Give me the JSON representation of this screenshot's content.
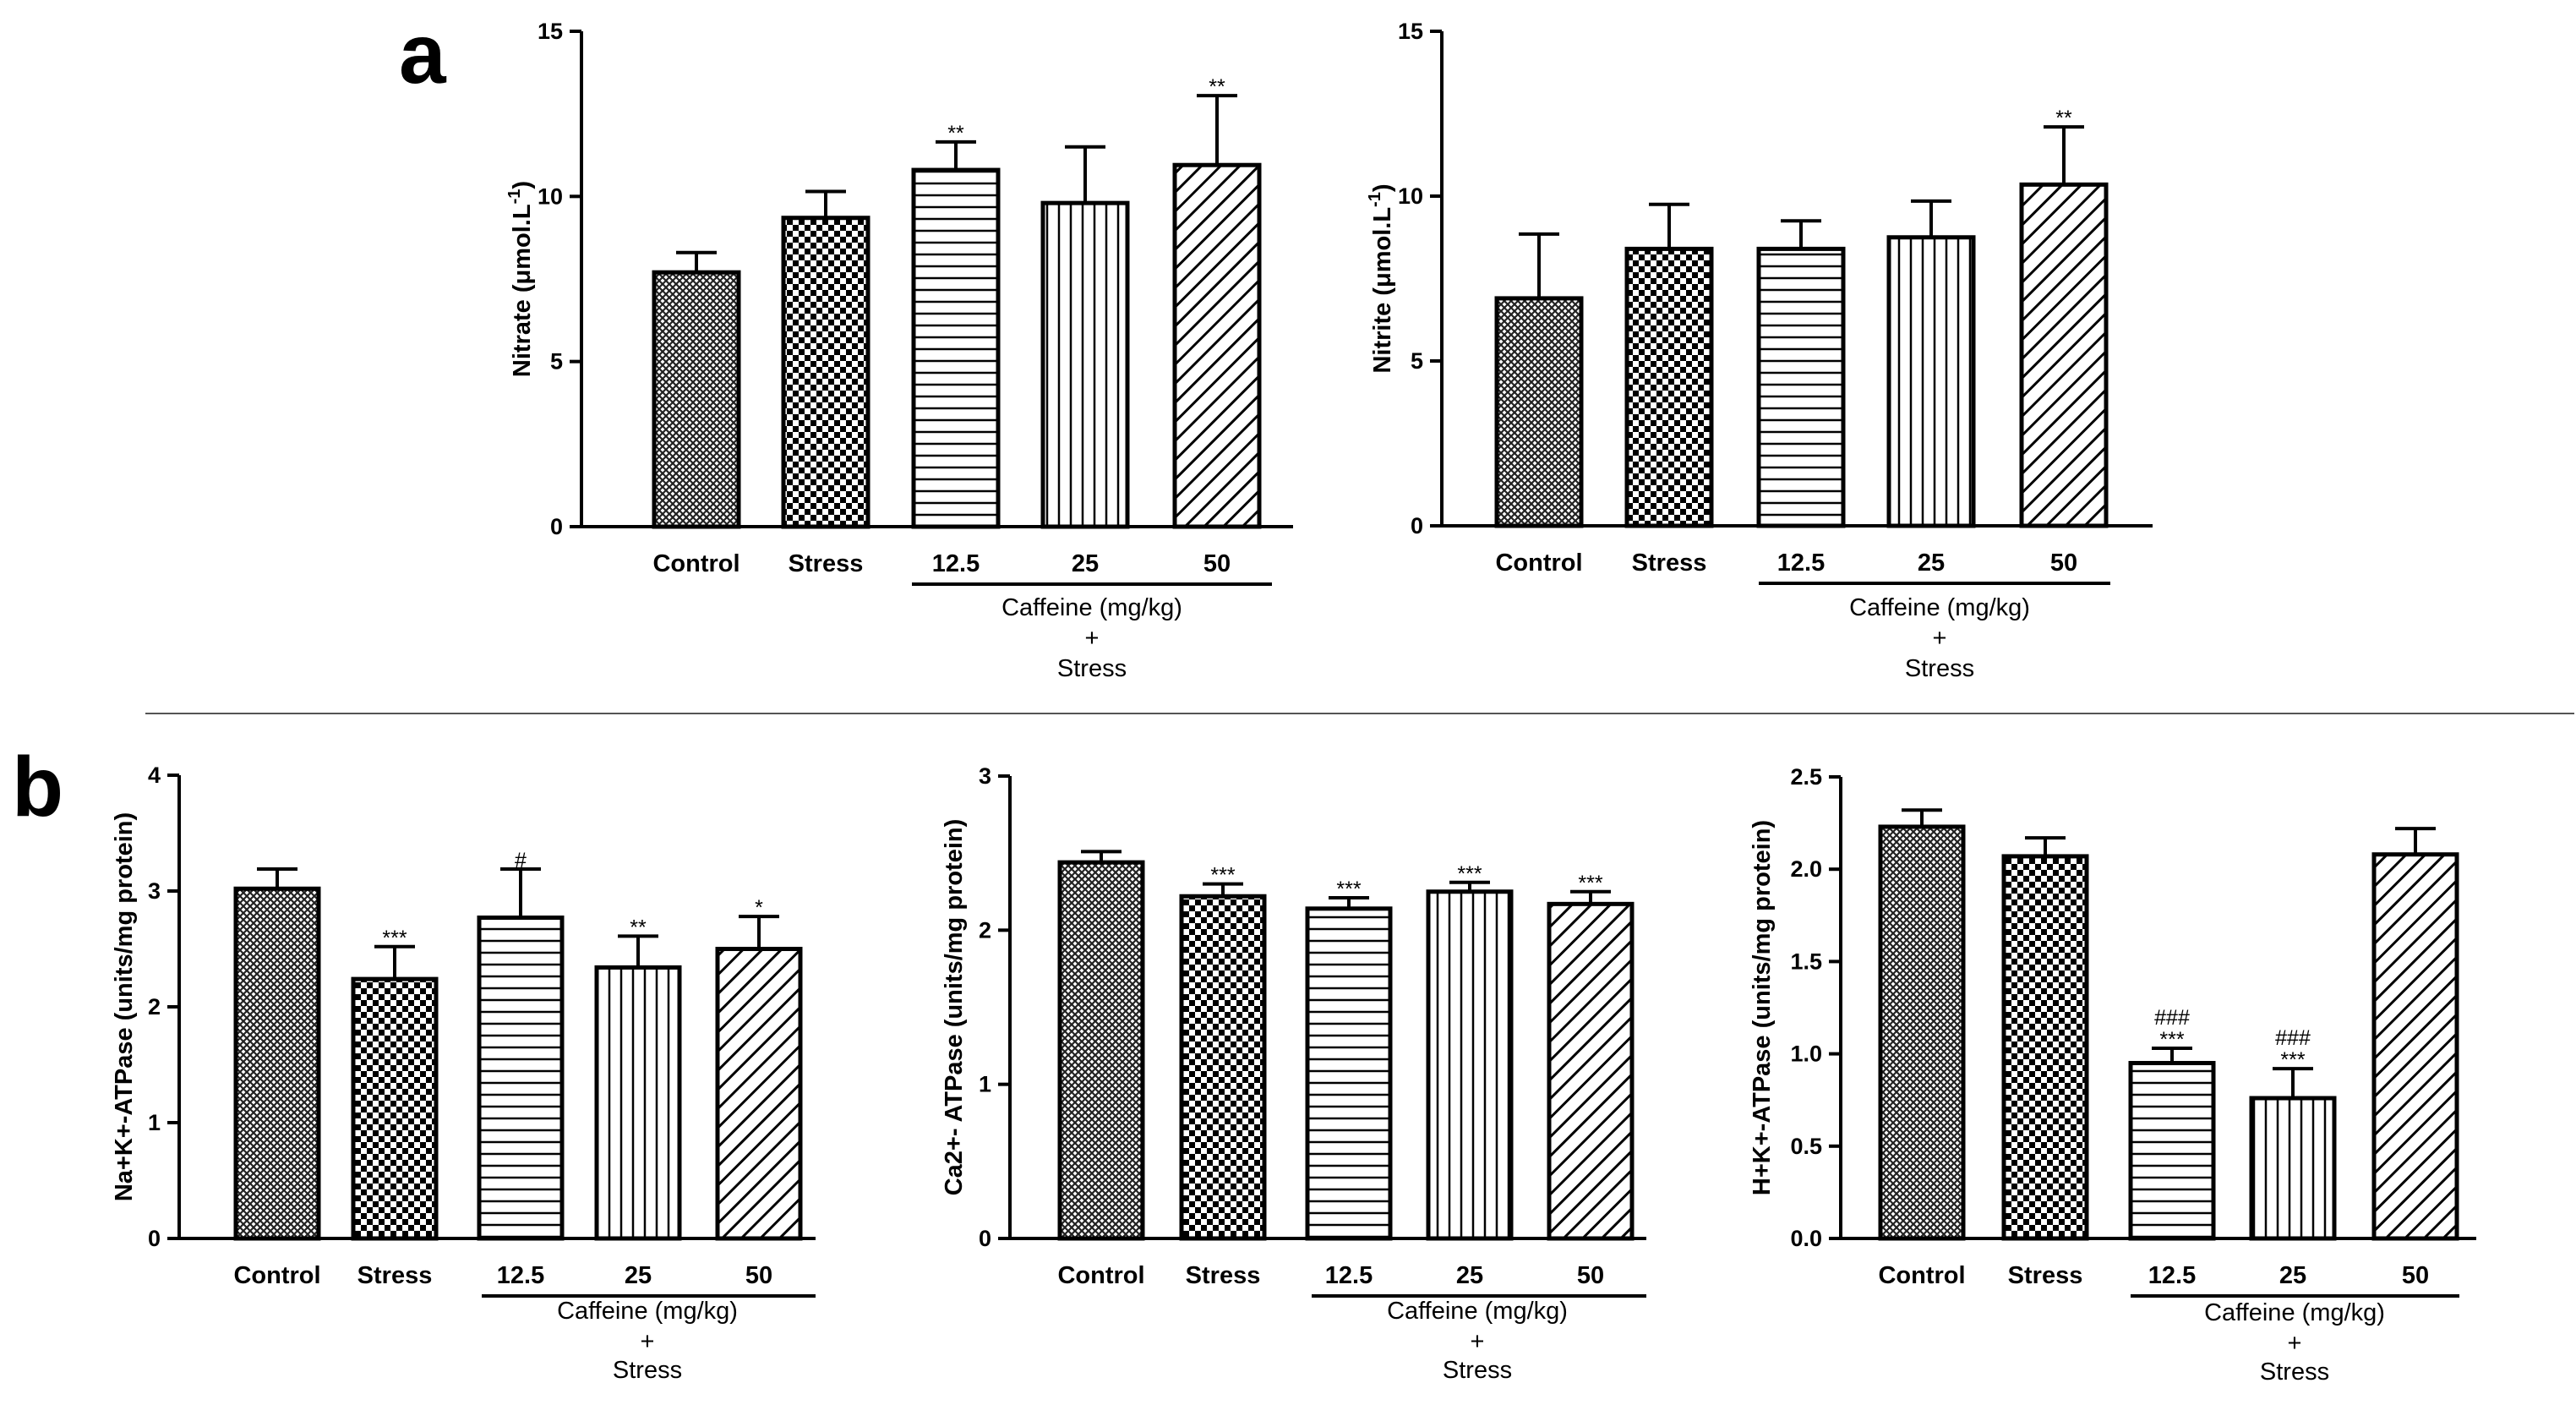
{
  "panel_labels": {
    "a": "a",
    "b": "b"
  },
  "chart_data": [
    {
      "id": "nitrate",
      "type": "bar",
      "ylabel": "Nitrate (μmol.L-1)",
      "ylabel_main": "Nitrate (μmol.L",
      "ylabel_sup": "-1",
      "ylabel_end": ")",
      "ylim": [
        0,
        15
      ],
      "yticks": [
        "0",
        "5",
        "10",
        "15"
      ],
      "categories": [
        "Control",
        "Stress",
        "12.5",
        "25",
        "50"
      ],
      "values": [
        7.7,
        9.35,
        10.8,
        9.8,
        10.95
      ],
      "errors": [
        0.6,
        0.8,
        0.85,
        1.7,
        2.1
      ],
      "significance": [
        "",
        "",
        "**",
        "",
        "**"
      ],
      "group_label": [
        "Caffeine (mg/kg)",
        "+",
        "Stress"
      ],
      "patterns": [
        "crosshatch",
        "checker",
        "horizontal",
        "vertical",
        "diagonal"
      ]
    },
    {
      "id": "nitrite",
      "type": "bar",
      "ylabel": "Nitrite (μmol.L-1)",
      "ylabel_main": "Nitrite (μmol.L",
      "ylabel_sup": "-1",
      "ylabel_end": ")",
      "ylim": [
        0,
        15
      ],
      "yticks": [
        "0",
        "5",
        "10",
        "15"
      ],
      "categories": [
        "Control",
        "Stress",
        "12.5",
        "25",
        "50"
      ],
      "values": [
        6.9,
        8.4,
        8.4,
        8.75,
        10.35
      ],
      "errors": [
        1.95,
        1.35,
        0.85,
        1.1,
        1.75
      ],
      "significance": [
        "",
        "",
        "",
        "",
        "**"
      ],
      "group_label": [
        "Caffeine (mg/kg)",
        "+",
        "Stress"
      ],
      "patterns": [
        "crosshatch",
        "checker",
        "horizontal",
        "vertical",
        "diagonal"
      ]
    },
    {
      "id": "nak-atpase",
      "type": "bar",
      "ylabel": "Na+K+-ATPase (units/mg protein)",
      "ylim": [
        0,
        4
      ],
      "yticks": [
        "0",
        "1",
        "2",
        "3",
        "4"
      ],
      "categories": [
        "Control",
        "Stress",
        "12.5",
        "25",
        "50"
      ],
      "values": [
        3.02,
        2.24,
        2.77,
        2.34,
        2.5
      ],
      "errors": [
        0.17,
        0.28,
        0.42,
        0.27,
        0.28
      ],
      "significance": [
        "",
        "***",
        "#",
        "**",
        "*"
      ],
      "group_label": [
        "Caffeine (mg/kg)",
        "+",
        "Stress"
      ],
      "patterns": [
        "crosshatch",
        "checker",
        "horizontal",
        "vertical",
        "diagonal"
      ]
    },
    {
      "id": "ca-atpase",
      "type": "bar",
      "ylabel": "Ca2+- ATPase (units/mg protein)",
      "ylim": [
        0,
        3
      ],
      "yticks": [
        "0",
        "1",
        "2",
        "3"
      ],
      "categories": [
        "Control",
        "Stress",
        "12.5",
        "25",
        "50"
      ],
      "values": [
        2.44,
        2.22,
        2.14,
        2.25,
        2.17
      ],
      "errors": [
        0.07,
        0.08,
        0.07,
        0.06,
        0.08
      ],
      "significance": [
        "",
        "***",
        "***",
        "***",
        "***"
      ],
      "group_label": [
        "Caffeine (mg/kg)",
        "+",
        "Stress"
      ],
      "patterns": [
        "crosshatch",
        "checker",
        "horizontal",
        "vertical",
        "diagonal"
      ]
    },
    {
      "id": "hk-atpase",
      "type": "bar",
      "ylabel": "H+K+-ATPase (units/mg protein)",
      "ylim": [
        0,
        2.5
      ],
      "yticks": [
        "0.0",
        "0.5",
        "1.0",
        "1.5",
        "2.0",
        "2.5"
      ],
      "categories": [
        "Control",
        "Stress",
        "12.5",
        "25",
        "50"
      ],
      "values": [
        2.23,
        2.07,
        0.95,
        0.76,
        2.08
      ],
      "errors": [
        0.09,
        0.1,
        0.08,
        0.16,
        0.14
      ],
      "significance": [
        "",
        "",
        "***",
        "***",
        ""
      ],
      "significance2": [
        "",
        "",
        "###",
        "###",
        ""
      ],
      "group_label": [
        "Caffeine (mg/kg)",
        "+",
        "Stress"
      ],
      "patterns": [
        "crosshatch",
        "checker",
        "horizontal",
        "vertical",
        "diagonal"
      ]
    }
  ]
}
